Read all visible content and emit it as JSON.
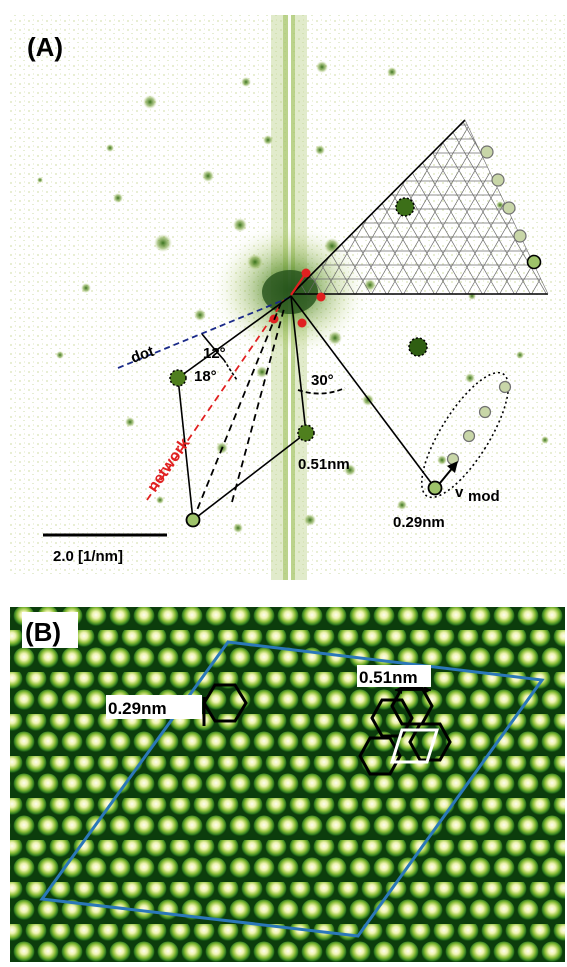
{
  "panel_a": {
    "label": "(A)",
    "dot_label": "dot",
    "network_label": "network",
    "angle_12": "12°",
    "angle_18": "18°",
    "angle_30": "30°",
    "dist_051": "0.51nm",
    "dist_029": "0.29nm",
    "vmod_main": "v",
    "vmod_sub": "mod",
    "scalebar_label": "2.0 [1/nm]"
  },
  "panel_b": {
    "label": "(B)",
    "dist_051": "0.51nm",
    "dist_029": "0.29nm"
  },
  "colors": {
    "fft_spot": "#5d8f1c",
    "stm_dark": "#0c3d0c",
    "stm_bright": "#fbfbe8",
    "supercell": "#2b78b8",
    "highlight_red": "#e02020"
  }
}
